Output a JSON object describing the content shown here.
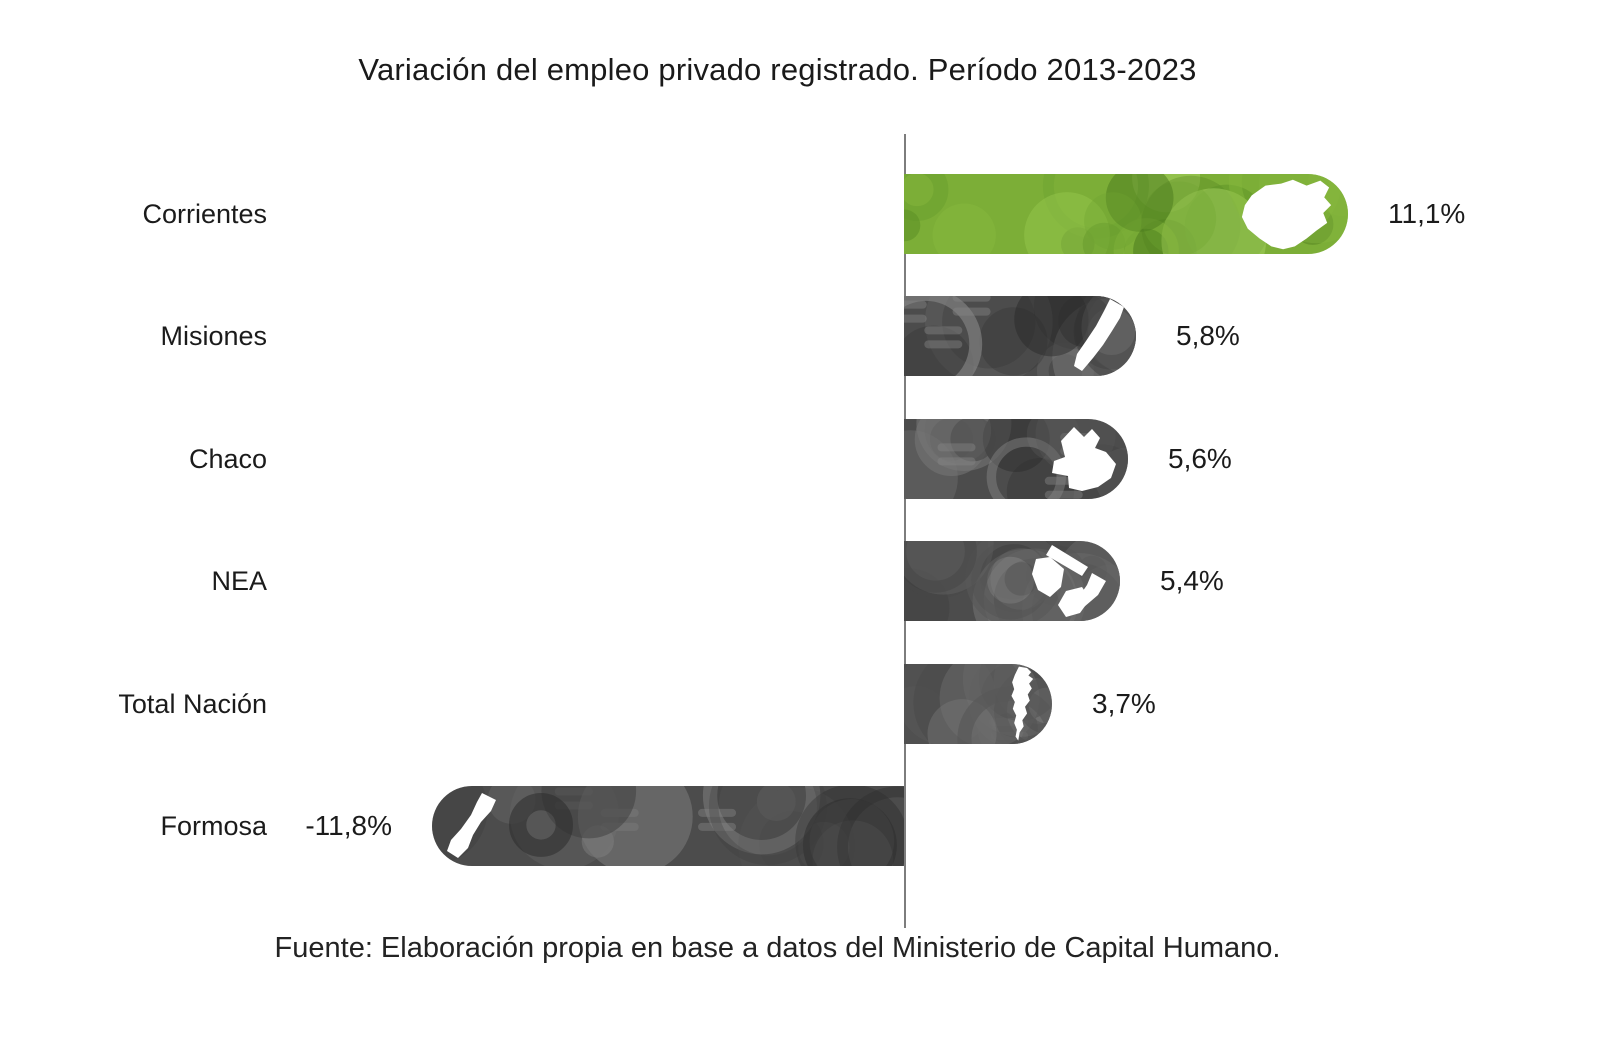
{
  "title": "Variación del empleo privado registrado. Período 2013-2023",
  "source": "Fuente: Elaboración propia en base a datos del Ministerio de Capital Humano.",
  "colors": {
    "text": "#1b1b1b",
    "axis": "#7d7d7d",
    "silhouette": "#ffffff",
    "highlight_bar_base": "#7cae37",
    "highlight_bar_tones": [
      "#4e7d1f",
      "#5f9428",
      "#6fa431",
      "#86b83e",
      "#96c64e",
      "#a6d160"
    ],
    "default_bar_base": "#4c4c4c",
    "default_bar_tones": [
      "#2e2e2e",
      "#3a3a3a",
      "#454545",
      "#585858",
      "#676767",
      "#787878",
      "#858585"
    ]
  },
  "chart_data": {
    "type": "bar",
    "orientation": "horizontal",
    "title": "Variación del empleo privado registrado. Período 2013-2023",
    "categories": [
      "Corrientes",
      "Misiones",
      "Chaco",
      "NEA",
      "Total Nación",
      "Formosa"
    ],
    "values": [
      11.1,
      5.8,
      5.6,
      5.4,
      3.7,
      -11.8
    ],
    "value_labels": [
      "11,1%",
      "5,8%",
      "5,6%",
      "5,4%",
      "3,7%",
      "-11,8%"
    ],
    "ids": [
      "corrientes",
      "misiones",
      "chaco",
      "nea",
      "total-nacion",
      "formosa"
    ],
    "icons": [
      "corrientes-map",
      "misiones-map",
      "chaco-map",
      "nea-map",
      "argentina-map",
      "formosa-map"
    ],
    "bar_styles": [
      "highlight",
      "default",
      "default",
      "default",
      "default",
      "default"
    ],
    "baseline": 0,
    "xlim": [
      -12,
      12
    ],
    "grid": false,
    "legend": false
  }
}
